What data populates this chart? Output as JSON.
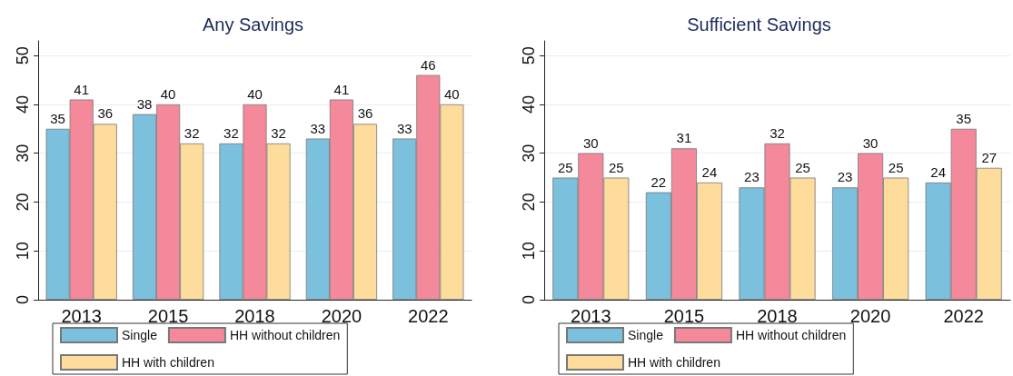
{
  "chart_data": [
    {
      "type": "bar",
      "title": "Any Savings",
      "categories": [
        "2013",
        "2015",
        "2018",
        "2020",
        "2022"
      ],
      "series": [
        {
          "name": "Single",
          "color": "#7bc0dc",
          "values": [
            35,
            38,
            32,
            33,
            33
          ]
        },
        {
          "name": "HH without children",
          "color": "#f4899b",
          "values": [
            41,
            40,
            40,
            41,
            46
          ]
        },
        {
          "name": "HH with children",
          "color": "#fddc9c",
          "values": [
            36,
            32,
            32,
            36,
            40
          ]
        }
      ],
      "ylim": [
        0,
        53
      ],
      "yticks": [
        0,
        10,
        20,
        30,
        40,
        50
      ],
      "grid": "y",
      "legend": "bottom",
      "data_labels": true
    },
    {
      "type": "bar",
      "title": "Sufficient Savings",
      "categories": [
        "2013",
        "2015",
        "2018",
        "2020",
        "2022"
      ],
      "series": [
        {
          "name": "Single",
          "color": "#7bc0dc",
          "values": [
            25,
            22,
            23,
            23,
            24
          ]
        },
        {
          "name": "HH without children",
          "color": "#f4899b",
          "values": [
            30,
            31,
            32,
            30,
            35
          ]
        },
        {
          "name": "HH with children",
          "color": "#fddc9c",
          "values": [
            25,
            24,
            25,
            25,
            27
          ]
        }
      ],
      "ylim": [
        0,
        53
      ],
      "yticks": [
        0,
        10,
        20,
        30,
        40,
        50
      ],
      "grid": "y",
      "legend": "bottom",
      "data_labels": true
    }
  ]
}
